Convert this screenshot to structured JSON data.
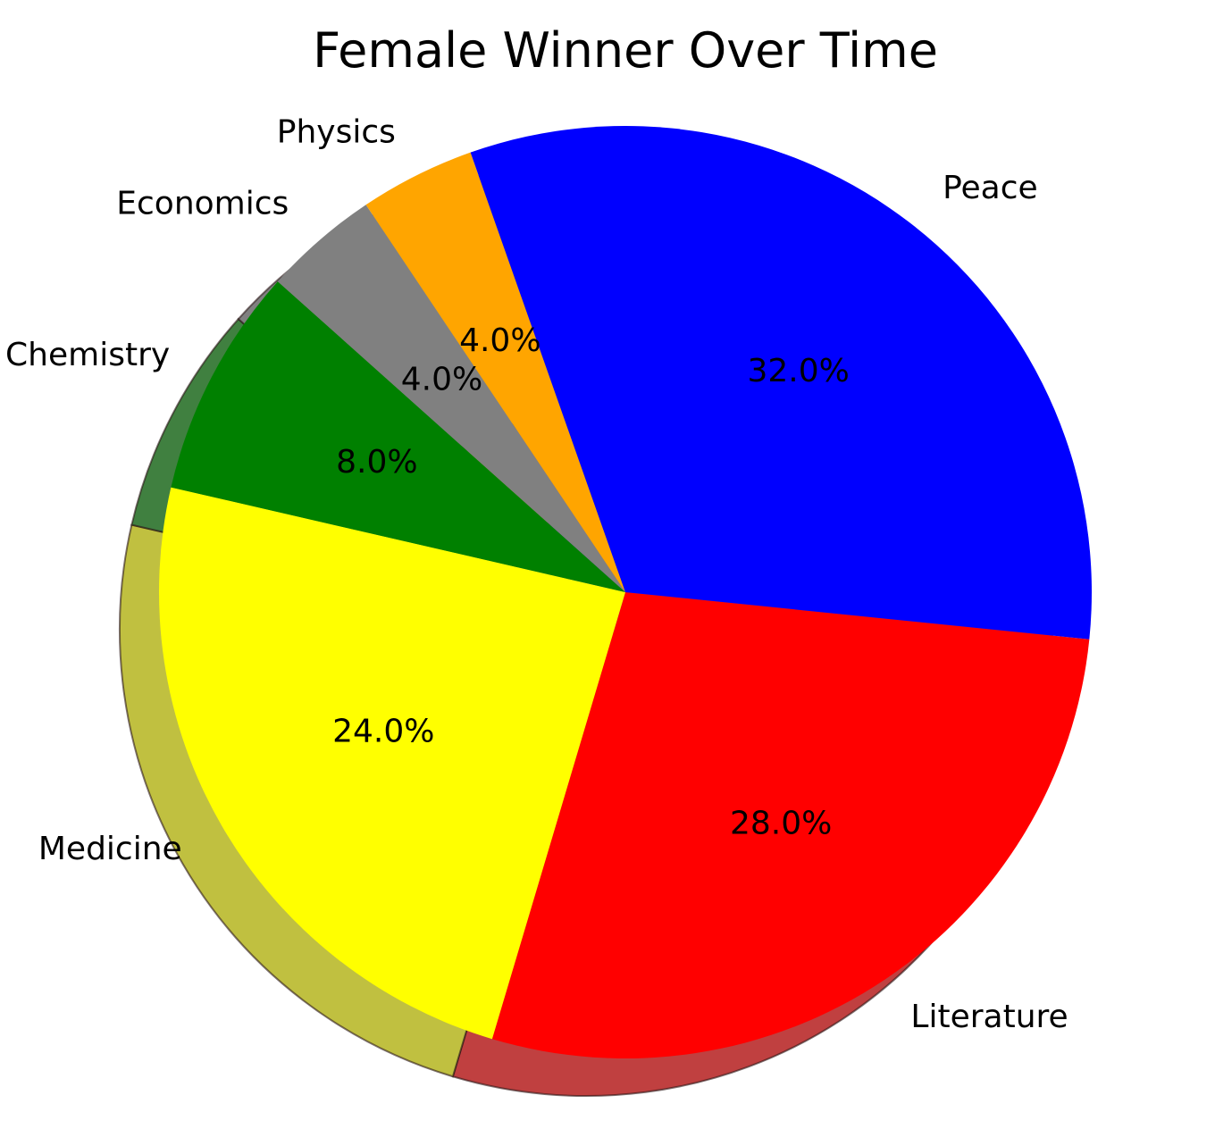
{
  "chart_data": {
    "type": "pie",
    "title": "Female Winner Over Time",
    "slices": [
      {
        "label": "Literature",
        "value": 28.0,
        "pct_label": "28.0%",
        "color": "#ff0000"
      },
      {
        "label": "Medicine",
        "value": 24.0,
        "pct_label": "24.0%",
        "color": "#ffff00"
      },
      {
        "label": "Chemistry",
        "value": 8.0,
        "pct_label": "8.0%",
        "color": "#008000"
      },
      {
        "label": "Economics",
        "value": 4.0,
        "pct_label": "4.0%",
        "color": "#808080"
      },
      {
        "label": "Physics",
        "value": 4.0,
        "pct_label": "4.0%",
        "color": "#ffa500"
      },
      {
        "label": "Peace",
        "value": 32.0,
        "pct_label": "32.0%",
        "color": "#0000ff"
      }
    ],
    "shadow": true
  }
}
